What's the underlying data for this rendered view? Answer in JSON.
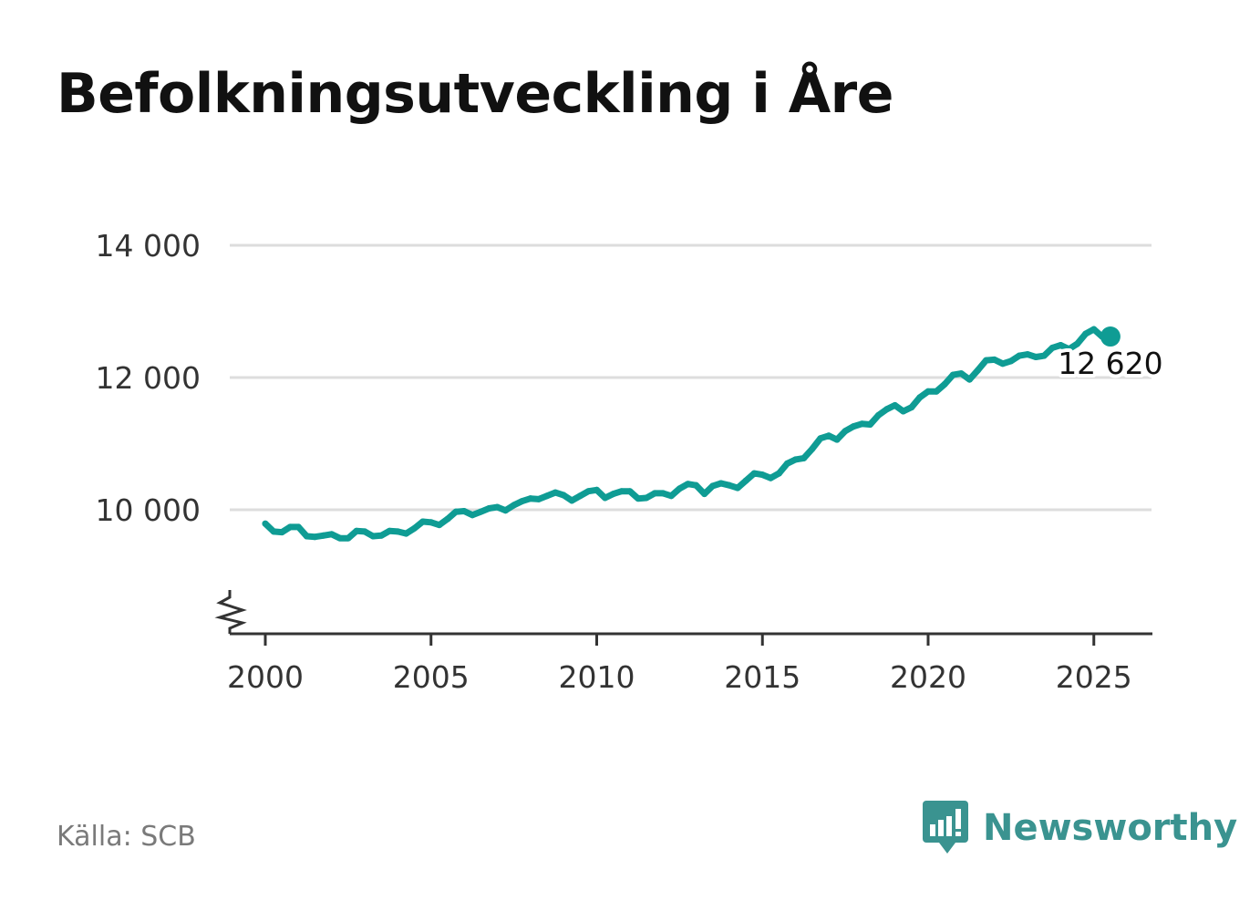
{
  "title": "Befolkningsutveckling i Åre",
  "source": "Källa: SCB",
  "brand": {
    "name": "Newsworthy",
    "icon": "newsworthy-logo-icon",
    "color": "#3a9390"
  },
  "colors": {
    "line": "#0f9c94",
    "grid": "#dddddd",
    "axis": "#333333"
  },
  "chart_data": {
    "type": "line",
    "title": "Befolkningsutveckling i Åre",
    "xlabel": "",
    "ylabel": "",
    "xlim": [
      1999.9,
      2026.8
    ],
    "ylim": [
      8200,
      14000
    ],
    "y_axis_break": true,
    "grid": "horizontal",
    "legend": "none",
    "yticks": [
      10000,
      12000,
      14000
    ],
    "ytick_labels": [
      "10 000",
      "12 000",
      "14 000"
    ],
    "xticks": [
      2000,
      2005,
      2010,
      2015,
      2020,
      2025
    ],
    "xtick_labels": [
      "2000",
      "2005",
      "2010",
      "2015",
      "2020",
      "2025"
    ],
    "end_label": "12 620",
    "series": [
      {
        "x": [
          2000.0,
          2000.25,
          2000.5,
          2000.75,
          2001.0,
          2001.25,
          2001.5,
          2001.75,
          2002.0,
          2002.25,
          2002.5,
          2002.75,
          2003.0,
          2003.25,
          2003.5,
          2003.75,
          2004.0,
          2004.25,
          2004.5,
          2004.75,
          2005.0,
          2005.25,
          2005.5,
          2005.75,
          2006.0,
          2006.25,
          2006.5,
          2006.75,
          2007.0,
          2007.25,
          2007.5,
          2007.75,
          2008.0,
          2008.25,
          2008.5,
          2008.75,
          2009.0,
          2009.25,
          2009.5,
          2009.75,
          2010.0,
          2010.25,
          2010.5,
          2010.75,
          2011.0,
          2011.25,
          2011.5,
          2011.75,
          2012.0,
          2012.25,
          2012.5,
          2012.75,
          2013.0,
          2013.25,
          2013.5,
          2013.75,
          2014.0,
          2014.25,
          2014.5,
          2014.75,
          2015.0,
          2015.25,
          2015.5,
          2015.75,
          2016.0,
          2016.25,
          2016.5,
          2016.75,
          2017.0,
          2017.25,
          2017.5,
          2017.75,
          2018.0,
          2018.25,
          2018.5,
          2018.75,
          2019.0,
          2019.25,
          2019.5,
          2019.75,
          2020.0,
          2020.25,
          2020.5,
          2020.75,
          2021.0,
          2021.25,
          2021.5,
          2021.75,
          2022.0,
          2022.25,
          2022.5,
          2022.75,
          2023.0,
          2023.25,
          2023.5,
          2023.75,
          2024.0,
          2024.25,
          2024.5,
          2024.75,
          2025.0,
          2025.25,
          2025.5
        ],
        "values": [
          9790,
          9670,
          9660,
          9740,
          9740,
          9600,
          9590,
          9610,
          9630,
          9570,
          9570,
          9680,
          9670,
          9600,
          9610,
          9680,
          9670,
          9640,
          9720,
          9820,
          9810,
          9770,
          9860,
          9970,
          9980,
          9920,
          9970,
          10020,
          10040,
          9990,
          10070,
          10130,
          10170,
          10160,
          10210,
          10260,
          10220,
          10140,
          10210,
          10280,
          10300,
          10180,
          10240,
          10280,
          10280,
          10170,
          10180,
          10250,
          10250,
          10210,
          10320,
          10390,
          10370,
          10240,
          10360,
          10400,
          10370,
          10330,
          10440,
          10550,
          10530,
          10480,
          10550,
          10700,
          10760,
          10780,
          10920,
          11080,
          11120,
          11060,
          11190,
          11260,
          11300,
          11290,
          11430,
          11520,
          11580,
          11490,
          11550,
          11700,
          11790,
          11790,
          11900,
          12040,
          12060,
          11970,
          12110,
          12260,
          12270,
          12210,
          12250,
          12330,
          12350,
          12310,
          12330,
          12450,
          12490,
          12430,
          12510,
          12660,
          12730,
          12620,
          12620
        ]
      }
    ]
  }
}
